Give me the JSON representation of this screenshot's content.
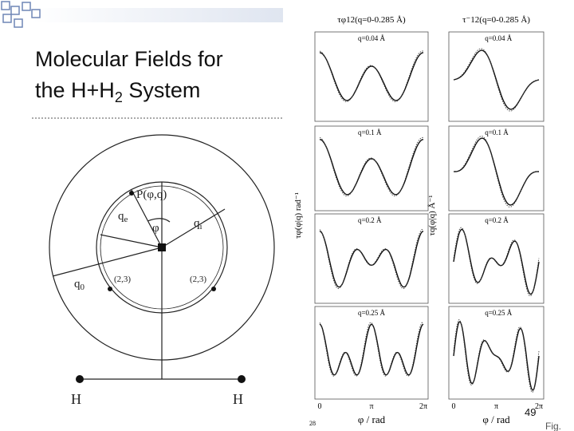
{
  "title": {
    "line1": "Molecular Fields for",
    "line2": "the H+H",
    "line2_sub": "2",
    "line2_end": " System"
  },
  "page_number": "49",
  "diagram": {
    "point": "P(φ,q)",
    "q_e": "q",
    "q_e_sub": "e",
    "q_i": "q",
    "q_i_sub": "i",
    "phi": "φ",
    "q_0": "q",
    "q_0_sub": "0",
    "node_left": "(2,3)",
    "node_right": "(2,3)",
    "atom_left": "H",
    "atom_right": "H"
  },
  "figure": {
    "left_header": "τφ12(q=0-0.285 Å)",
    "right_header": "τ⁻12(q=0-0.285 Å)",
    "left_ylabel": "τφ(φ|q) rad⁻¹",
    "right_ylabel": "τq(φ|q) Å⁻¹",
    "left_panels": [
      "q=0.04 Å",
      "q=0.1 Å",
      "q=0.2 Å",
      "q=0.25 Å"
    ],
    "right_panels": [
      "q=0.04 Å",
      "q=0.1 Å",
      "q=0.2 Å",
      "q=0.25 Å"
    ],
    "x_ticks": [
      "0",
      "π",
      "2π"
    ],
    "xlabel": "φ / rad",
    "source_page": "28",
    "caption": "Fig."
  }
}
